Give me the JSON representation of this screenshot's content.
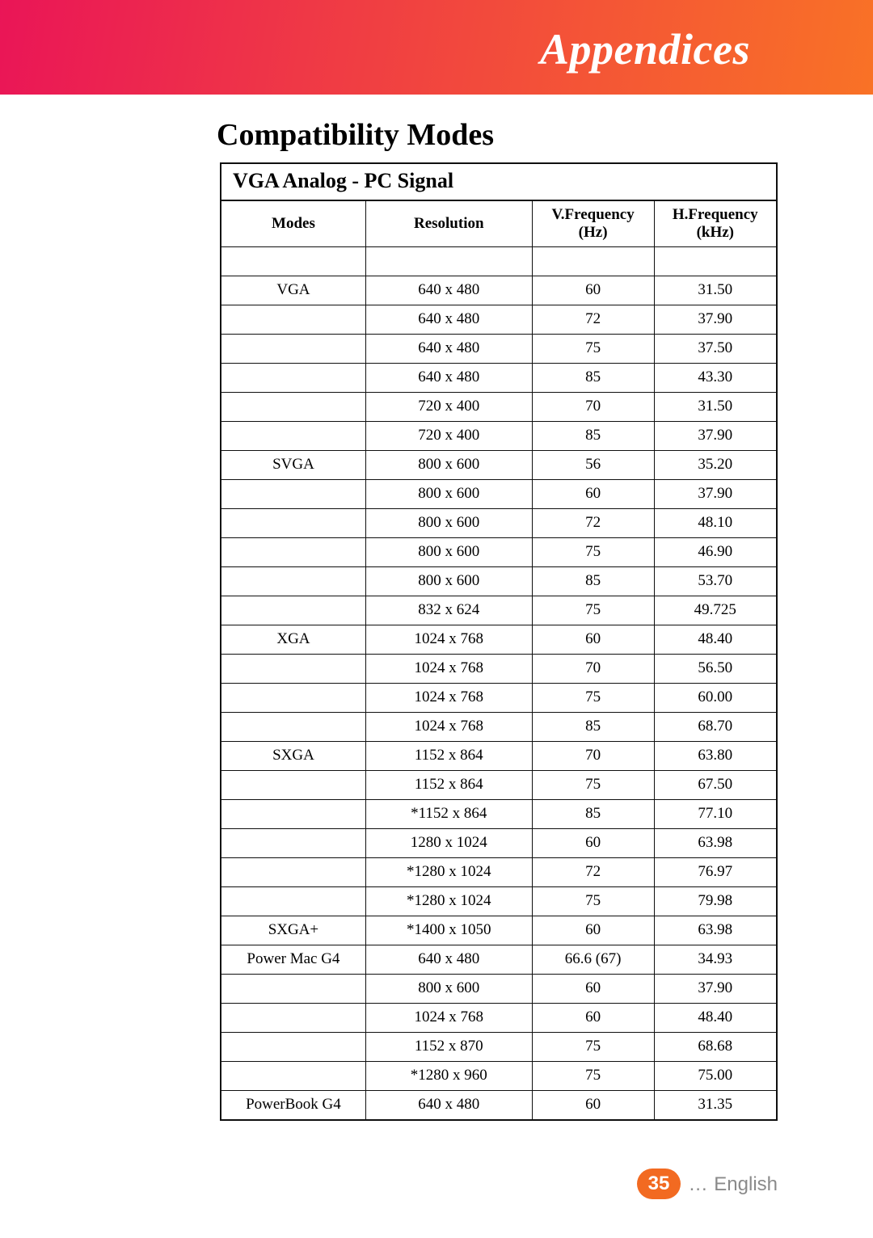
{
  "header": {
    "title": "Appendices"
  },
  "section": {
    "title": "Compatibility Modes"
  },
  "table": {
    "caption": "VGA Analog - PC Signal",
    "columns": [
      {
        "label": "Modes"
      },
      {
        "label_line1": "Resolution"
      },
      {
        "label_line1": "V.Frequency",
        "label_line2": "(Hz)"
      },
      {
        "label_line1": "H.Frequency",
        "label_line2": "(kHz)"
      }
    ],
    "rows": [
      {
        "mode": "VGA",
        "res": "640 x 480",
        "vf": "60",
        "hf": "31.50"
      },
      {
        "mode": "",
        "res": "640 x 480",
        "vf": "72",
        "hf": "37.90"
      },
      {
        "mode": "",
        "res": "640 x 480",
        "vf": "75",
        "hf": "37.50"
      },
      {
        "mode": "",
        "res": "640 x 480",
        "vf": "85",
        "hf": "43.30"
      },
      {
        "mode": "",
        "res": "720 x 400",
        "vf": "70",
        "hf": "31.50"
      },
      {
        "mode": "",
        "res": "720 x 400",
        "vf": "85",
        "hf": "37.90"
      },
      {
        "mode": "SVGA",
        "res": "800 x 600",
        "vf": "56",
        "hf": "35.20"
      },
      {
        "mode": "",
        "res": "800 x 600",
        "vf": "60",
        "hf": "37.90"
      },
      {
        "mode": "",
        "res": "800 x 600",
        "vf": "72",
        "hf": "48.10"
      },
      {
        "mode": "",
        "res": "800 x 600",
        "vf": "75",
        "hf": "46.90"
      },
      {
        "mode": "",
        "res": "800 x 600",
        "vf": "85",
        "hf": "53.70"
      },
      {
        "mode": "",
        "res": "832 x 624",
        "vf": "75",
        "hf": "49.725"
      },
      {
        "mode": "XGA",
        "res": "1024 x 768",
        "vf": "60",
        "hf": "48.40"
      },
      {
        "mode": "",
        "res": "1024 x 768",
        "vf": "70",
        "hf": "56.50"
      },
      {
        "mode": "",
        "res": "1024 x 768",
        "vf": "75",
        "hf": "60.00"
      },
      {
        "mode": "",
        "res": "1024 x 768",
        "vf": "85",
        "hf": "68.70"
      },
      {
        "mode": "SXGA",
        "res": "1152 x 864",
        "vf": "70",
        "hf": "63.80"
      },
      {
        "mode": "",
        "res": "1152 x 864",
        "vf": "75",
        "hf": "67.50"
      },
      {
        "mode": "",
        "res": "*1152 x 864",
        "vf": "85",
        "hf": "77.10"
      },
      {
        "mode": "",
        "res": "1280 x 1024",
        "vf": "60",
        "hf": "63.98"
      },
      {
        "mode": "",
        "res": "*1280 x 1024",
        "vf": "72",
        "hf": "76.97"
      },
      {
        "mode": "",
        "res": "*1280 x 1024",
        "vf": "75",
        "hf": "79.98"
      },
      {
        "mode": "SXGA+",
        "res": "*1400 x 1050",
        "vf": "60",
        "hf": "63.98"
      },
      {
        "mode": "Power Mac G4",
        "res": "640 x 480",
        "vf": "66.6 (67)",
        "hf": "34.93"
      },
      {
        "mode": "",
        "res": "800 x 600",
        "vf": "60",
        "hf": "37.90"
      },
      {
        "mode": "",
        "res": "1024 x 768",
        "vf": "60",
        "hf": "48.40"
      },
      {
        "mode": "",
        "res": "1152 x 870",
        "vf": "75",
        "hf": "68.68"
      },
      {
        "mode": "",
        "res": "*1280 x 960",
        "vf": "75",
        "hf": "75.00"
      },
      {
        "mode": "PowerBook G4",
        "res": "640 x 480",
        "vf": "60",
        "hf": "31.35"
      }
    ]
  },
  "footer": {
    "page_number": "35",
    "language_prefix": "... ",
    "language": "English"
  },
  "colors": {
    "banner_grad": [
      "#ea1557",
      "#ef3846",
      "#f97226"
    ],
    "badge_bg": "#f26a21",
    "footer_text": "#8a8a8a",
    "border": "#0f0f0f"
  }
}
